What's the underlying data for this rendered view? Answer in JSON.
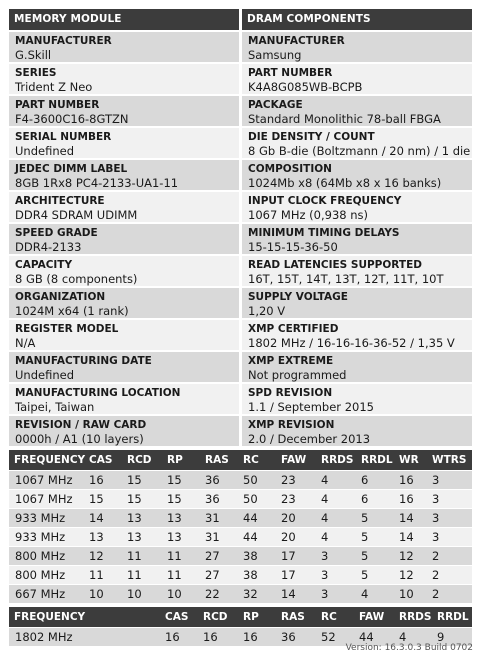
{
  "memory_module": {
    "header": "MEMORY MODULE",
    "fields": [
      {
        "label": "MANUFACTURER",
        "value": "G.Skill"
      },
      {
        "label": "SERIES",
        "value": "Trident Z Neo"
      },
      {
        "label": "PART NUMBER",
        "value": "F4-3600C16-8GTZN"
      },
      {
        "label": "SERIAL NUMBER",
        "value": "Undefined"
      },
      {
        "label": "JEDEC DIMM LABEL",
        "value": "8GB 1Rx8 PC4-2133-UA1-11"
      },
      {
        "label": "ARCHITECTURE",
        "value": "DDR4 SDRAM UDIMM"
      },
      {
        "label": "SPEED GRADE",
        "value": "DDR4-2133"
      },
      {
        "label": "CAPACITY",
        "value": "8 GB (8 components)"
      },
      {
        "label": "ORGANIZATION",
        "value": "1024M x64 (1 rank)"
      },
      {
        "label": "REGISTER MODEL",
        "value": "N/A"
      },
      {
        "label": "MANUFACTURING DATE",
        "value": "Undefined"
      },
      {
        "label": "MANUFACTURING LOCATION",
        "value": "Taipei, Taiwan"
      },
      {
        "label": "REVISION / RAW CARD",
        "value": "0000h / A1 (10 layers)"
      }
    ]
  },
  "dram_components": {
    "header": "DRAM COMPONENTS",
    "fields": [
      {
        "label": "MANUFACTURER",
        "value": "Samsung"
      },
      {
        "label": "PART NUMBER",
        "value": "K4A8G085WB-BCPB"
      },
      {
        "label": "PACKAGE",
        "value": "Standard Monolithic 78-ball FBGA"
      },
      {
        "label": "DIE DENSITY / COUNT",
        "value": "8 Gb B-die (Boltzmann / 20 nm) / 1 die"
      },
      {
        "label": "COMPOSITION",
        "value": "1024Mb x8 (64Mb x8 x 16 banks)"
      },
      {
        "label": "INPUT CLOCK FREQUENCY",
        "value": "1067 MHz (0,938 ns)"
      },
      {
        "label": "MINIMUM TIMING DELAYS",
        "value": "15-15-15-36-50"
      },
      {
        "label": "READ LATENCIES SUPPORTED",
        "value": "16T, 15T, 14T, 13T, 12T, 11T, 10T"
      },
      {
        "label": "SUPPLY VOLTAGE",
        "value": "1,20 V"
      },
      {
        "label": "XMP CERTIFIED",
        "value": "1802 MHz / 16-16-16-36-52 / 1,35 V"
      },
      {
        "label": "XMP EXTREME",
        "value": "Not programmed"
      },
      {
        "label": "SPD REVISION",
        "value": "1.1 / September 2015"
      },
      {
        "label": "XMP REVISION",
        "value": "2.0 / December 2013"
      }
    ]
  },
  "jedec_timings": {
    "columns": [
      "FREQUENCY",
      "CAS",
      "RCD",
      "RP",
      "RAS",
      "RC",
      "FAW",
      "RRDS",
      "RRDL",
      "WR",
      "WTRS"
    ],
    "rows": [
      [
        "1067 MHz",
        "16",
        "15",
        "15",
        "36",
        "50",
        "23",
        "4",
        "6",
        "16",
        "3"
      ],
      [
        "1067 MHz",
        "15",
        "15",
        "15",
        "36",
        "50",
        "23",
        "4",
        "6",
        "16",
        "3"
      ],
      [
        "933 MHz",
        "14",
        "13",
        "13",
        "31",
        "44",
        "20",
        "4",
        "5",
        "14",
        "3"
      ],
      [
        "933 MHz",
        "13",
        "13",
        "13",
        "31",
        "44",
        "20",
        "4",
        "5",
        "14",
        "3"
      ],
      [
        "800 MHz",
        "12",
        "11",
        "11",
        "27",
        "38",
        "17",
        "3",
        "5",
        "12",
        "2"
      ],
      [
        "800 MHz",
        "11",
        "11",
        "11",
        "27",
        "38",
        "17",
        "3",
        "5",
        "12",
        "2"
      ],
      [
        "667 MHz",
        "10",
        "10",
        "10",
        "22",
        "32",
        "14",
        "3",
        "4",
        "10",
        "2"
      ]
    ]
  },
  "xmp_timings": {
    "columns": [
      "FREQUENCY",
      "CAS",
      "RCD",
      "RP",
      "RAS",
      "RC",
      "FAW",
      "RRDS",
      "RRDL"
    ],
    "rows": [
      [
        "1802 MHz",
        "16",
        "16",
        "16",
        "36",
        "52",
        "44",
        "4",
        "9"
      ]
    ]
  },
  "version": "Version: 16.3.0.3 Build 0702"
}
